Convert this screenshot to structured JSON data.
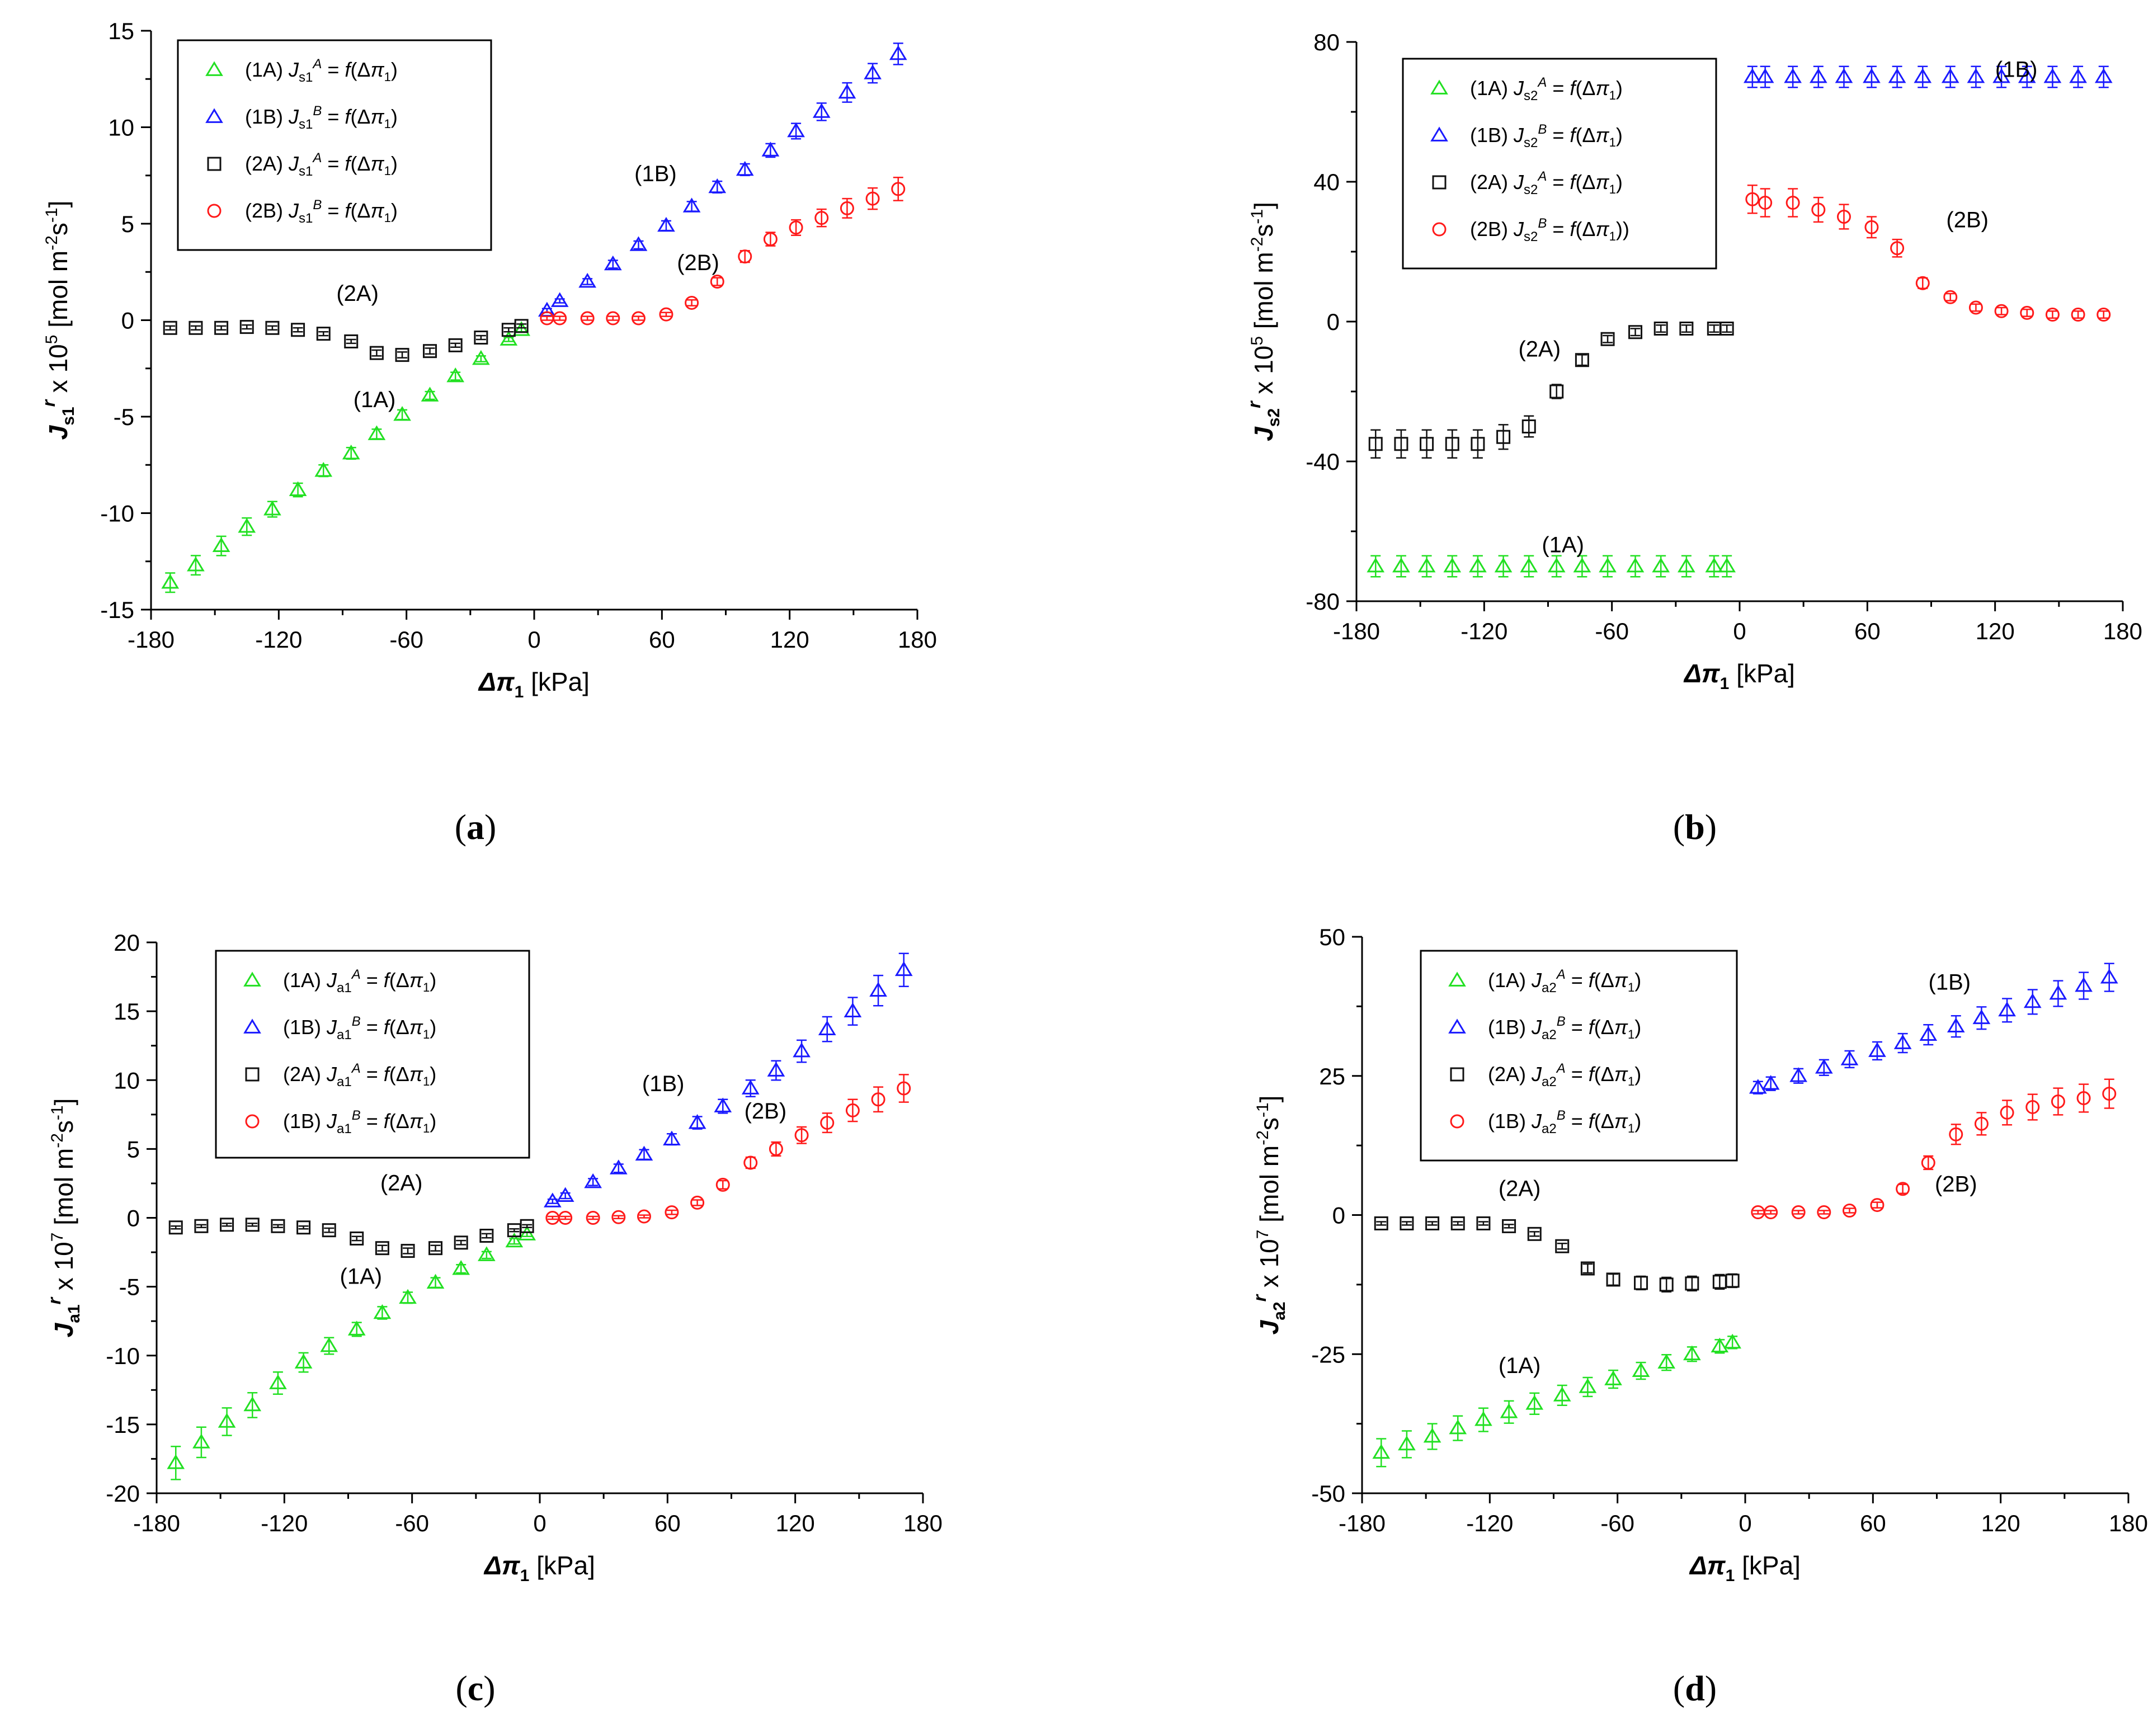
{
  "figure": {
    "panel_labels": [
      "(a)",
      "(b)",
      "(c)",
      "(d)"
    ]
  },
  "colors": {
    "green": "#22e022",
    "blue": "#1a1aff",
    "black": "#111111",
    "red": "#ff1a1a"
  },
  "chart_data": [
    {
      "id": "a",
      "type": "scatter",
      "panel_label": "(a)",
      "xlabel": "Δπ1 [kPa]",
      "ylabel": "Js1r x 10^5 [mol m-2s-1]",
      "xlim": [
        -180,
        180
      ],
      "ylim": [
        -15,
        15
      ],
      "xticks": [
        -180,
        -120,
        -60,
        0,
        60,
        120,
        180
      ],
      "yticks": [
        -15,
        -10,
        -5,
        0,
        5,
        10,
        15
      ],
      "legend": [
        "(1A) Js1A = f(Δπ1)",
        "(1B) Js1B = f(Δπ1)",
        "(2A) Js1A = f(Δπ1)",
        "(2B) Js1B = f(Δπ1)"
      ],
      "annotations": [
        "(2A)",
        "(1A)",
        "(1B)",
        "(2B)"
      ],
      "series": [
        {
          "name": "(1A)",
          "marker": "triangle",
          "color": "#22e022",
          "x": [
            -171,
            -159,
            -147,
            -135,
            -123,
            -111,
            -99,
            -86,
            -74,
            -62,
            -49,
            -37,
            -25,
            -12,
            -6
          ],
          "y": [
            -13.6,
            -12.7,
            -11.7,
            -10.7,
            -9.8,
            -8.8,
            -7.8,
            -6.9,
            -5.9,
            -4.9,
            -3.9,
            -2.9,
            -2.0,
            -1.0,
            -0.5
          ],
          "err": [
            0.5,
            0.5,
            0.5,
            0.45,
            0.4,
            0.35,
            0.3,
            0.3,
            0.25,
            0.25,
            0.2,
            0.2,
            0.15,
            0.1,
            0.1
          ]
        },
        {
          "name": "(1B)",
          "marker": "triangle",
          "color": "#1a1aff",
          "x": [
            6,
            12,
            25,
            37,
            49,
            62,
            74,
            86,
            99,
            111,
            123,
            135,
            147,
            159,
            171
          ],
          "y": [
            0.5,
            1.0,
            2.0,
            2.9,
            3.9,
            4.9,
            5.9,
            6.9,
            7.8,
            8.8,
            9.8,
            10.8,
            11.8,
            12.8,
            13.8
          ],
          "err": [
            0.1,
            0.1,
            0.15,
            0.2,
            0.2,
            0.25,
            0.25,
            0.3,
            0.3,
            0.35,
            0.4,
            0.45,
            0.5,
            0.5,
            0.55
          ]
        },
        {
          "name": "(2A)",
          "marker": "square",
          "color": "#111111",
          "x": [
            -171,
            -159,
            -147,
            -135,
            -123,
            -111,
            -99,
            -86,
            -74,
            -62,
            -49,
            -37,
            -25,
            -12,
            -6
          ],
          "y": [
            -0.4,
            -0.4,
            -0.4,
            -0.35,
            -0.4,
            -0.5,
            -0.7,
            -1.1,
            -1.7,
            -1.8,
            -1.6,
            -1.3,
            -0.9,
            -0.5,
            -0.3
          ],
          "err": [
            0.1,
            0.1,
            0.1,
            0.1,
            0.1,
            0.1,
            0.1,
            0.1,
            0.15,
            0.15,
            0.15,
            0.1,
            0.1,
            0.1,
            0.1
          ]
        },
        {
          "name": "(2B)",
          "marker": "circle",
          "color": "#ff1a1a",
          "x": [
            6,
            12,
            25,
            37,
            49,
            62,
            74,
            86,
            99,
            111,
            123,
            135,
            147,
            159,
            171
          ],
          "y": [
            0.1,
            0.1,
            0.1,
            0.1,
            0.1,
            0.3,
            0.9,
            2.0,
            3.3,
            4.2,
            4.8,
            5.3,
            5.8,
            6.3,
            6.8
          ],
          "err": [
            0.1,
            0.1,
            0.1,
            0.1,
            0.1,
            0.1,
            0.15,
            0.2,
            0.3,
            0.35,
            0.4,
            0.45,
            0.5,
            0.55,
            0.6
          ]
        }
      ]
    },
    {
      "id": "b",
      "type": "scatter",
      "panel_label": "(b)",
      "xlabel": "Δπ1 [kPa]",
      "ylabel": "Js2r x 10^5 [mol m-2s-1]",
      "xlim": [
        -180,
        180
      ],
      "ylim": [
        -80,
        80
      ],
      "xticks": [
        -180,
        -120,
        -60,
        0,
        60,
        120,
        180
      ],
      "yticks": [
        -80,
        -40,
        0,
        40,
        80
      ],
      "legend": [
        "(1A) Js2A = f(Δπ1)",
        "(1B) Js2B = f(Δπ1)",
        "(2A) Js2A = f(Δπ1)",
        "(2B) Js2B = f(Δπ1))"
      ],
      "annotations": [
        "(1B)",
        "(2B)",
        "(2A)",
        "(1A)"
      ],
      "series": [
        {
          "name": "(1A)",
          "marker": "triangle",
          "color": "#22e022",
          "x": [
            -171,
            -159,
            -147,
            -135,
            -123,
            -111,
            -99,
            -86,
            -74,
            -62,
            -49,
            -37,
            -25,
            -12,
            -6
          ],
          "y": [
            -70,
            -70,
            -70,
            -70,
            -70,
            -70,
            -70,
            -70,
            -70,
            -70,
            -70,
            -70,
            -70,
            -70,
            -70
          ],
          "err": [
            3,
            3,
            3,
            3,
            3,
            3,
            3,
            3,
            3,
            3,
            3,
            3,
            3,
            3,
            3
          ]
        },
        {
          "name": "(1B)",
          "marker": "triangle",
          "color": "#1a1aff",
          "x": [
            6,
            12,
            25,
            37,
            49,
            62,
            74,
            86,
            99,
            111,
            123,
            135,
            147,
            159,
            171
          ],
          "y": [
            70,
            70,
            70,
            70,
            70,
            70,
            70,
            70,
            70,
            70,
            70,
            70,
            70,
            70,
            70
          ],
          "err": [
            3,
            3,
            3,
            3,
            3,
            3,
            3,
            3,
            3,
            3,
            3,
            3,
            3,
            3,
            3
          ]
        },
        {
          "name": "(2A)",
          "marker": "square",
          "color": "#111111",
          "x": [
            -171,
            -159,
            -147,
            -135,
            -123,
            -111,
            -99,
            -86,
            -74,
            -62,
            -49,
            -37,
            -25,
            -12,
            -6
          ],
          "y": [
            -35,
            -35,
            -35,
            -35,
            -35,
            -33,
            -30,
            -20,
            -11,
            -5,
            -3,
            -2,
            -2,
            -2,
            -2
          ],
          "err": [
            4,
            4,
            4,
            4,
            4,
            3.5,
            3,
            2,
            1.5,
            1,
            1,
            1,
            1,
            1,
            1
          ]
        },
        {
          "name": "(2B)",
          "marker": "circle",
          "color": "#ff1a1a",
          "x": [
            6,
            12,
            25,
            37,
            49,
            62,
            74,
            86,
            99,
            111,
            123,
            135,
            147,
            159,
            171
          ],
          "y": [
            35,
            34,
            34,
            32,
            30,
            27,
            21,
            11,
            7,
            4,
            3,
            2.5,
            2,
            2,
            2
          ],
          "err": [
            4,
            4,
            4,
            3.5,
            3.5,
            3,
            2.5,
            1.5,
            1,
            1,
            1,
            1,
            1,
            1,
            1
          ]
        }
      ]
    },
    {
      "id": "c",
      "type": "scatter",
      "panel_label": "(c)",
      "xlabel": "Δπ1 [kPa]",
      "ylabel": "Ja1r x 10^7 [mol m-2s-1]",
      "xlim": [
        -180,
        180
      ],
      "ylim": [
        -20,
        20
      ],
      "xticks": [
        -180,
        -120,
        -60,
        0,
        60,
        120,
        180
      ],
      "yticks": [
        -20,
        -15,
        -10,
        -5,
        0,
        5,
        10,
        15,
        20
      ],
      "legend": [
        "(1A) Ja1A = f(Δπ1)",
        "(1B) Ja1B = f(Δπ1)",
        "(2A) Ja1A = f(Δπ1)",
        "(1B) Ja1B = f(Δπ1)"
      ],
      "annotations": [
        "(2A)",
        "(1A)",
        "(1B)",
        "(2B)"
      ],
      "series": [
        {
          "name": "(1A)",
          "marker": "triangle",
          "color": "#22e022",
          "x": [
            -171,
            -159,
            -147,
            -135,
            -123,
            -111,
            -99,
            -86,
            -74,
            -62,
            -49,
            -37,
            -25,
            -12,
            -6
          ],
          "y": [
            -17.8,
            -16.3,
            -14.8,
            -13.6,
            -12.0,
            -10.5,
            -9.3,
            -8.1,
            -6.9,
            -5.8,
            -4.7,
            -3.7,
            -2.7,
            -1.7,
            -1.2
          ],
          "err": [
            1.2,
            1.1,
            1.0,
            0.9,
            0.8,
            0.7,
            0.6,
            0.5,
            0.45,
            0.4,
            0.35,
            0.3,
            0.25,
            0.2,
            0.15
          ]
        },
        {
          "name": "(1B)",
          "marker": "triangle",
          "color": "#1a1aff",
          "x": [
            6,
            12,
            25,
            37,
            49,
            62,
            74,
            86,
            99,
            111,
            123,
            135,
            147,
            159,
            171
          ],
          "y": [
            1.2,
            1.6,
            2.6,
            3.6,
            4.6,
            5.7,
            6.9,
            8.1,
            9.4,
            10.7,
            12.1,
            13.7,
            15.0,
            16.5,
            18.0
          ],
          "err": [
            0.15,
            0.2,
            0.25,
            0.3,
            0.35,
            0.4,
            0.45,
            0.5,
            0.6,
            0.7,
            0.8,
            0.9,
            1.0,
            1.1,
            1.2
          ]
        },
        {
          "name": "(2A)",
          "marker": "square",
          "color": "#111111",
          "x": [
            -171,
            -159,
            -147,
            -135,
            -123,
            -111,
            -99,
            -86,
            -74,
            -62,
            -49,
            -37,
            -25,
            -12,
            -6
          ],
          "y": [
            -0.7,
            -0.6,
            -0.5,
            -0.5,
            -0.6,
            -0.7,
            -0.9,
            -1.5,
            -2.2,
            -2.4,
            -2.2,
            -1.8,
            -1.3,
            -0.9,
            -0.6
          ],
          "err": [
            0.1,
            0.1,
            0.1,
            0.1,
            0.1,
            0.1,
            0.15,
            0.15,
            0.2,
            0.2,
            0.2,
            0.15,
            0.15,
            0.1,
            0.1
          ]
        },
        {
          "name": "(2B)",
          "marker": "circle",
          "color": "#ff1a1a",
          "x": [
            6,
            12,
            25,
            37,
            49,
            62,
            74,
            86,
            99,
            111,
            123,
            135,
            147,
            159,
            171
          ],
          "y": [
            0.0,
            0.0,
            0.0,
            0.05,
            0.1,
            0.4,
            1.1,
            2.4,
            4.0,
            5.0,
            6.0,
            6.9,
            7.8,
            8.6,
            9.4
          ],
          "err": [
            0.1,
            0.1,
            0.1,
            0.1,
            0.1,
            0.15,
            0.2,
            0.3,
            0.4,
            0.5,
            0.6,
            0.7,
            0.8,
            0.9,
            1.0
          ]
        }
      ]
    },
    {
      "id": "d",
      "type": "scatter",
      "panel_label": "(d)",
      "xlabel": "Δπ1 [kPa]",
      "ylabel": "Ja2r x 10^7 [mol m-2s-1]",
      "xlim": [
        -180,
        180
      ],
      "ylim": [
        -50,
        50
      ],
      "xticks": [
        -180,
        -120,
        -60,
        0,
        60,
        120,
        180
      ],
      "yticks": [
        -50,
        -25,
        0,
        25,
        50
      ],
      "legend": [
        "(1A) Ja2A = f(Δπ1)",
        "(1B) Ja2B = f(Δπ1)",
        "(2A) Ja2A = f(Δπ1)",
        "(1B) Ja2B = f(Δπ1)"
      ],
      "annotations": [
        "(1B)",
        "(2A)",
        "(2B)",
        "(1A)"
      ],
      "series": [
        {
          "name": "(1A)",
          "marker": "triangle",
          "color": "#22e022",
          "x": [
            -171,
            -159,
            -147,
            -135,
            -123,
            -111,
            -99,
            -86,
            -74,
            -62,
            -49,
            -37,
            -25,
            -12,
            -6
          ],
          "y": [
            -42.7,
            -41.2,
            -39.8,
            -38.3,
            -36.8,
            -35.4,
            -33.9,
            -32.4,
            -30.9,
            -29.5,
            -28.0,
            -26.5,
            -25.0,
            -23.6,
            -22.9
          ],
          "err": [
            2.5,
            2.4,
            2.3,
            2.2,
            2.1,
            2.0,
            1.9,
            1.8,
            1.7,
            1.6,
            1.5,
            1.4,
            1.3,
            1.2,
            1.1
          ]
        },
        {
          "name": "(1B)",
          "marker": "triangle",
          "color": "#1a1aff",
          "x": [
            6,
            12,
            25,
            37,
            49,
            62,
            74,
            86,
            99,
            111,
            123,
            135,
            147,
            159,
            171
          ],
          "y": [
            22.9,
            23.6,
            25.0,
            26.5,
            28.0,
            29.5,
            30.9,
            32.4,
            33.9,
            35.4,
            36.8,
            38.3,
            39.8,
            41.2,
            42.7
          ],
          "err": [
            1.1,
            1.2,
            1.3,
            1.4,
            1.5,
            1.6,
            1.7,
            1.8,
            1.9,
            2.0,
            2.1,
            2.2,
            2.3,
            2.4,
            2.5
          ]
        },
        {
          "name": "(2A)",
          "marker": "square",
          "color": "#111111",
          "x": [
            -171,
            -159,
            -147,
            -135,
            -123,
            -111,
            -99,
            -86,
            -74,
            -62,
            -49,
            -37,
            -25,
            -12,
            -6
          ],
          "y": [
            -1.5,
            -1.5,
            -1.5,
            -1.5,
            -1.5,
            -2.0,
            -3.4,
            -5.6,
            -9.6,
            -11.6,
            -12.2,
            -12.5,
            -12.3,
            -12.0,
            -11.8
          ],
          "err": [
            0.3,
            0.3,
            0.3,
            0.3,
            0.3,
            0.3,
            0.4,
            0.5,
            0.8,
            1.0,
            1.2,
            1.3,
            1.3,
            1.3,
            1.2
          ]
        },
        {
          "name": "(2B)",
          "marker": "circle",
          "color": "#ff1a1a",
          "x": [
            6,
            12,
            25,
            37,
            49,
            62,
            74,
            86,
            99,
            111,
            123,
            135,
            147,
            159,
            171
          ],
          "y": [
            0.5,
            0.5,
            0.5,
            0.5,
            0.8,
            1.8,
            4.7,
            9.4,
            14.5,
            16.4,
            18.4,
            19.4,
            20.4,
            21.0,
            21.8
          ],
          "err": [
            0.3,
            0.3,
            0.3,
            0.3,
            0.4,
            0.5,
            0.8,
            1.2,
            1.8,
            2.0,
            2.2,
            2.3,
            2.4,
            2.5,
            2.6
          ]
        }
      ]
    }
  ]
}
